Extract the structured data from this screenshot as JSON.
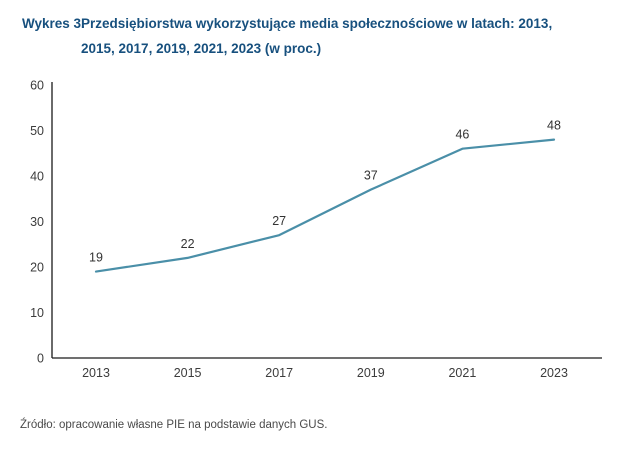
{
  "title": {
    "label": "Wykres 3.",
    "line1": "Przedsiębiorstwa wykorzystujące media społecznościowe w latach: 2013,",
    "line2": "2015, 2017, 2019, 2021, 2023 (w proc.)"
  },
  "source": "Źródło: opracowanie własne PIE na podstawie danych GUS.",
  "colors": {
    "title": "#17507e",
    "line": "#4a8fa8",
    "axis": "#1a1a1a",
    "tick_label": "#3c3c3c",
    "data_label": "#333333",
    "source_text": "#4a4a4a",
    "background": "#ffffff"
  },
  "chart_data": {
    "type": "line",
    "title": "Wykres 3. Przedsiębiorstwa wykorzystujące media społecznościowe w latach: 2013, 2015, 2017, 2019, 2021, 2023 (w proc.)",
    "categories": [
      "2013",
      "2015",
      "2017",
      "2019",
      "2021",
      "2023"
    ],
    "values": [
      19,
      22,
      27,
      37,
      46,
      48
    ],
    "data_labels": [
      19,
      22,
      27,
      37,
      46,
      48
    ],
    "xlabel": "",
    "ylabel": "",
    "ylim": [
      0,
      60
    ],
    "yticks": [
      0,
      10,
      20,
      30,
      40,
      50,
      60
    ],
    "grid": false,
    "legend": false,
    "line_width": 2.2
  }
}
